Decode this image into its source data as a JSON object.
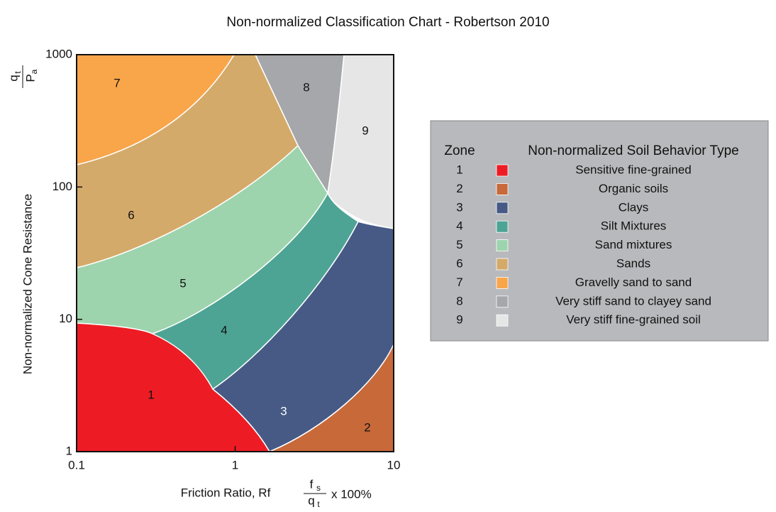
{
  "chart_data": {
    "type": "zones",
    "title": "Non-normalized Classification Chart - Robertson 2010",
    "xlabel": "Friction Ratio, Rf",
    "xlabel_fraction": {
      "numerator": "f",
      "numerator_sub": "s",
      "denominator": "q",
      "denominator_sub": "t"
    },
    "xlabel_suffix": "x 100%",
    "ylabel": "Non-normalized Cone Resistance",
    "ylabel_fraction": {
      "numerator": "q",
      "numerator_sub": "t",
      "denominator": "P",
      "denominator_sub": "a"
    },
    "xscale": "log",
    "yscale": "log",
    "xlim": [
      0.1,
      10
    ],
    "ylim": [
      1,
      1000
    ],
    "xticks": [
      0.1,
      1,
      10
    ],
    "yticks": [
      1,
      10,
      100,
      1000
    ],
    "legend": {
      "zone_header": "Zone",
      "type_header": "Non-normalized Soil Behavior Type",
      "position": "right"
    },
    "zones": [
      {
        "zone": "1",
        "name": "Sensitive fine-grained",
        "color": "#ed1c24"
      },
      {
        "zone": "2",
        "name": "Organic soils",
        "color": "#c8693a"
      },
      {
        "zone": "3",
        "name": "Clays",
        "color": "#465a85"
      },
      {
        "zone": "4",
        "name": "Silt Mixtures",
        "color": "#4ea494"
      },
      {
        "zone": "5",
        "name": "Sand mixtures",
        "color": "#9dd4ad"
      },
      {
        "zone": "6",
        "name": "Sands",
        "color": "#d4aa6a"
      },
      {
        "zone": "7",
        "name": "Gravelly sand to sand",
        "color": "#f9a54a"
      },
      {
        "zone": "8",
        "name": "Very stiff sand to clayey sand",
        "color": "#a5a7aa"
      },
      {
        "zone": "9",
        "name": "Very stiff fine-grained soil",
        "color": "#e6e6e6"
      }
    ]
  }
}
